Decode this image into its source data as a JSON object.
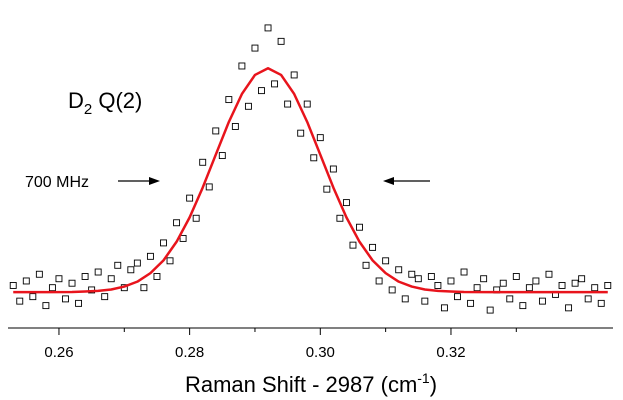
{
  "chart_data": {
    "type": "scatter",
    "annotations": [
      {
        "text": "D",
        "sub": "2",
        "tail": " Q(2)"
      },
      {
        "text": "700 MHz"
      }
    ],
    "x_label": {
      "text": "Raman Shift - 2987 (cm",
      "sup": "-1",
      "tail": ")"
    },
    "xlim": [
      0.2522,
      0.3448
    ],
    "ylim": [
      -0.16,
      1.26
    ],
    "xticks": [
      0.26,
      0.28,
      {
        "value": 0.3,
        "label": "0.30"
      },
      0.32
    ],
    "xminor_ticks": [
      0.27,
      0.29,
      0.31,
      0.33
    ],
    "series": [
      {
        "type": "scatter",
        "color": "#000000",
        "x": [
          0.253,
          0.254,
          0.255,
          0.256,
          0.257,
          0.258,
          0.259,
          0.26,
          0.261,
          0.262,
          0.263,
          0.264,
          0.265,
          0.266,
          0.267,
          0.268,
          0.269,
          0.27,
          0.271,
          0.272,
          0.273,
          0.274,
          0.275,
          0.276,
          0.277,
          0.278,
          0.279,
          0.28,
          0.281,
          0.282,
          0.283,
          0.284,
          0.285,
          0.286,
          0.287,
          0.288,
          0.289,
          0.29,
          0.291,
          0.292,
          0.293,
          0.294,
          0.295,
          0.296,
          0.297,
          0.298,
          0.299,
          0.3,
          0.301,
          0.302,
          0.303,
          0.304,
          0.305,
          0.306,
          0.307,
          0.308,
          0.309,
          0.31,
          0.311,
          0.312,
          0.313,
          0.314,
          0.315,
          0.316,
          0.317,
          0.318,
          0.319,
          0.32,
          0.321,
          0.322,
          0.323,
          0.324,
          0.325,
          0.326,
          0.327,
          0.328,
          0.329,
          0.33,
          0.331,
          0.332,
          0.333,
          0.334,
          0.335,
          0.336,
          0.337,
          0.338,
          0.339,
          0.34,
          0.341,
          0.342,
          0.343,
          0.344
        ],
        "values": [
          0.03,
          -0.04,
          0.05,
          -0.02,
          0.08,
          -0.06,
          0.02,
          0.06,
          -0.03,
          0.04,
          -0.05,
          0.07,
          0.01,
          0.09,
          -0.02,
          0.06,
          0.12,
          0.02,
          0.1,
          0.13,
          0.02,
          0.16,
          0.07,
          0.22,
          0.14,
          0.31,
          0.24,
          0.42,
          0.33,
          0.58,
          0.47,
          0.72,
          0.61,
          0.86,
          0.74,
          1.01,
          0.83,
          1.09,
          0.9,
          1.18,
          0.93,
          1.12,
          0.84,
          0.97,
          0.71,
          0.84,
          0.6,
          0.69,
          0.46,
          0.55,
          0.33,
          0.4,
          0.21,
          0.29,
          0.12,
          0.2,
          0.05,
          0.14,
          0.01,
          0.1,
          -0.03,
          0.08,
          0.06,
          -0.04,
          0.07,
          0.03,
          -0.07,
          0.05,
          -0.02,
          0.09,
          -0.05,
          0.02,
          0.06,
          -0.08,
          0.01,
          0.04,
          -0.03,
          0.07,
          -0.06,
          0.02,
          0.05,
          -0.04,
          0.08,
          -0.01,
          0.03,
          -0.07,
          0.04,
          0.06,
          -0.03,
          0.02,
          -0.05,
          0.03
        ]
      },
      {
        "type": "line",
        "color": "#e8141c",
        "x": [
          0.253,
          0.258,
          0.262,
          0.264,
          0.266,
          0.268,
          0.27,
          0.272,
          0.274,
          0.276,
          0.278,
          0.28,
          0.282,
          0.284,
          0.286,
          0.288,
          0.29,
          0.292,
          0.294,
          0.296,
          0.298,
          0.3,
          0.302,
          0.304,
          0.306,
          0.308,
          0.31,
          0.312,
          0.314,
          0.316,
          0.318,
          0.32,
          0.322,
          0.326,
          0.33,
          0.334,
          0.338,
          0.342,
          0.344
        ],
        "values": [
          0,
          0,
          0.001,
          0.003,
          0.006,
          0.012,
          0.025,
          0.047,
          0.085,
          0.142,
          0.225,
          0.334,
          0.467,
          0.614,
          0.76,
          0.885,
          0.97,
          1,
          0.97,
          0.885,
          0.76,
          0.614,
          0.467,
          0.334,
          0.225,
          0.142,
          0.085,
          0.047,
          0.025,
          0.012,
          0.006,
          0.003,
          0.001,
          0,
          0,
          0,
          0,
          0,
          0
        ]
      }
    ]
  }
}
